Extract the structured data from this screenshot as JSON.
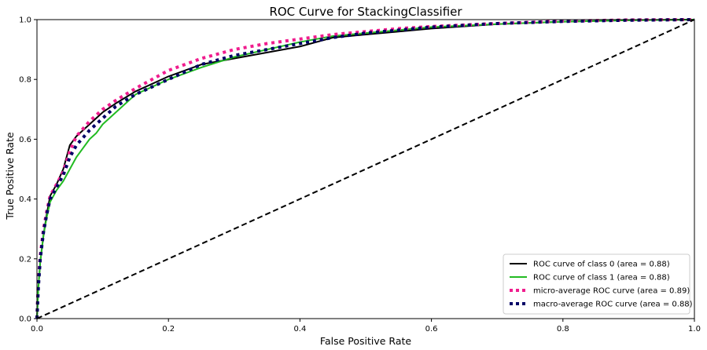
{
  "chart_data": {
    "type": "line",
    "title": "ROC Curve for StackingClassifier",
    "xlabel": "False Positive Rate",
    "ylabel": "True Positive Rate",
    "xlim": [
      0.0,
      1.0
    ],
    "ylim": [
      0.0,
      1.0
    ],
    "xticks": [
      "0.0",
      "0.2",
      "0.4",
      "0.6",
      "0.8",
      "1.0"
    ],
    "yticks": [
      "0.0",
      "0.2",
      "0.4",
      "0.6",
      "0.8",
      "1.0"
    ],
    "grid": false,
    "legend_position": "lower right",
    "series": [
      {
        "name": "ROC curve of class 0 (area = 0.88)",
        "color": "#000000",
        "style": "solid",
        "x": [
          0.0,
          0.002,
          0.005,
          0.01,
          0.015,
          0.02,
          0.025,
          0.03,
          0.04,
          0.05,
          0.06,
          0.08,
          0.1,
          0.12,
          0.15,
          0.2,
          0.25,
          0.3,
          0.35,
          0.4,
          0.45,
          0.5,
          0.55,
          0.6,
          0.7,
          0.8,
          0.9,
          1.0
        ],
        "y": [
          0.0,
          0.1,
          0.19,
          0.28,
          0.35,
          0.41,
          0.43,
          0.45,
          0.5,
          0.58,
          0.61,
          0.65,
          0.69,
          0.72,
          0.76,
          0.81,
          0.85,
          0.87,
          0.89,
          0.91,
          0.94,
          0.95,
          0.96,
          0.97,
          0.985,
          0.993,
          0.998,
          1.0
        ]
      },
      {
        "name": "ROC curve of class 1 (area = 0.88)",
        "color": "#22bb22",
        "style": "solid",
        "x": [
          0.0,
          0.002,
          0.005,
          0.01,
          0.015,
          0.02,
          0.03,
          0.04,
          0.05,
          0.06,
          0.07,
          0.08,
          0.09,
          0.1,
          0.12,
          0.15,
          0.2,
          0.25,
          0.3,
          0.35,
          0.4,
          0.45,
          0.5,
          0.55,
          0.6,
          0.7,
          0.8,
          0.9,
          1.0
        ],
        "y": [
          0.0,
          0.1,
          0.19,
          0.28,
          0.34,
          0.39,
          0.43,
          0.46,
          0.5,
          0.54,
          0.57,
          0.6,
          0.62,
          0.65,
          0.69,
          0.75,
          0.8,
          0.84,
          0.875,
          0.9,
          0.925,
          0.945,
          0.955,
          0.965,
          0.975,
          0.985,
          0.993,
          0.998,
          1.0
        ]
      },
      {
        "name": "micro-average ROC curve (area = 0.89)",
        "color": "#f01d8e",
        "style": "dotted",
        "x": [
          0.0,
          0.002,
          0.005,
          0.01,
          0.015,
          0.02,
          0.03,
          0.04,
          0.05,
          0.06,
          0.08,
          0.1,
          0.12,
          0.15,
          0.2,
          0.25,
          0.3,
          0.35,
          0.4,
          0.45,
          0.5,
          0.55,
          0.6,
          0.7,
          0.8,
          0.9,
          1.0
        ],
        "y": [
          0.0,
          0.12,
          0.21,
          0.3,
          0.36,
          0.41,
          0.45,
          0.49,
          0.56,
          0.61,
          0.66,
          0.7,
          0.73,
          0.77,
          0.83,
          0.87,
          0.9,
          0.92,
          0.935,
          0.95,
          0.96,
          0.97,
          0.977,
          0.987,
          0.995,
          0.999,
          1.0
        ]
      },
      {
        "name": "macro-average ROC curve (area = 0.88)",
        "color": "#000066",
        "style": "dotted",
        "x": [
          0.0,
          0.002,
          0.005,
          0.01,
          0.015,
          0.02,
          0.03,
          0.04,
          0.05,
          0.06,
          0.08,
          0.1,
          0.12,
          0.15,
          0.2,
          0.25,
          0.3,
          0.35,
          0.4,
          0.45,
          0.5,
          0.55,
          0.6,
          0.7,
          0.8,
          0.9,
          1.0
        ],
        "y": [
          0.0,
          0.1,
          0.2,
          0.29,
          0.35,
          0.4,
          0.44,
          0.48,
          0.54,
          0.58,
          0.63,
          0.67,
          0.71,
          0.75,
          0.8,
          0.85,
          0.88,
          0.9,
          0.92,
          0.94,
          0.955,
          0.965,
          0.975,
          0.987,
          0.994,
          0.998,
          1.0
        ]
      },
      {
        "name": "",
        "color": "#000000",
        "style": "dashed",
        "x": [
          0.0,
          1.0
        ],
        "y": [
          0.0,
          1.0
        ]
      }
    ]
  }
}
